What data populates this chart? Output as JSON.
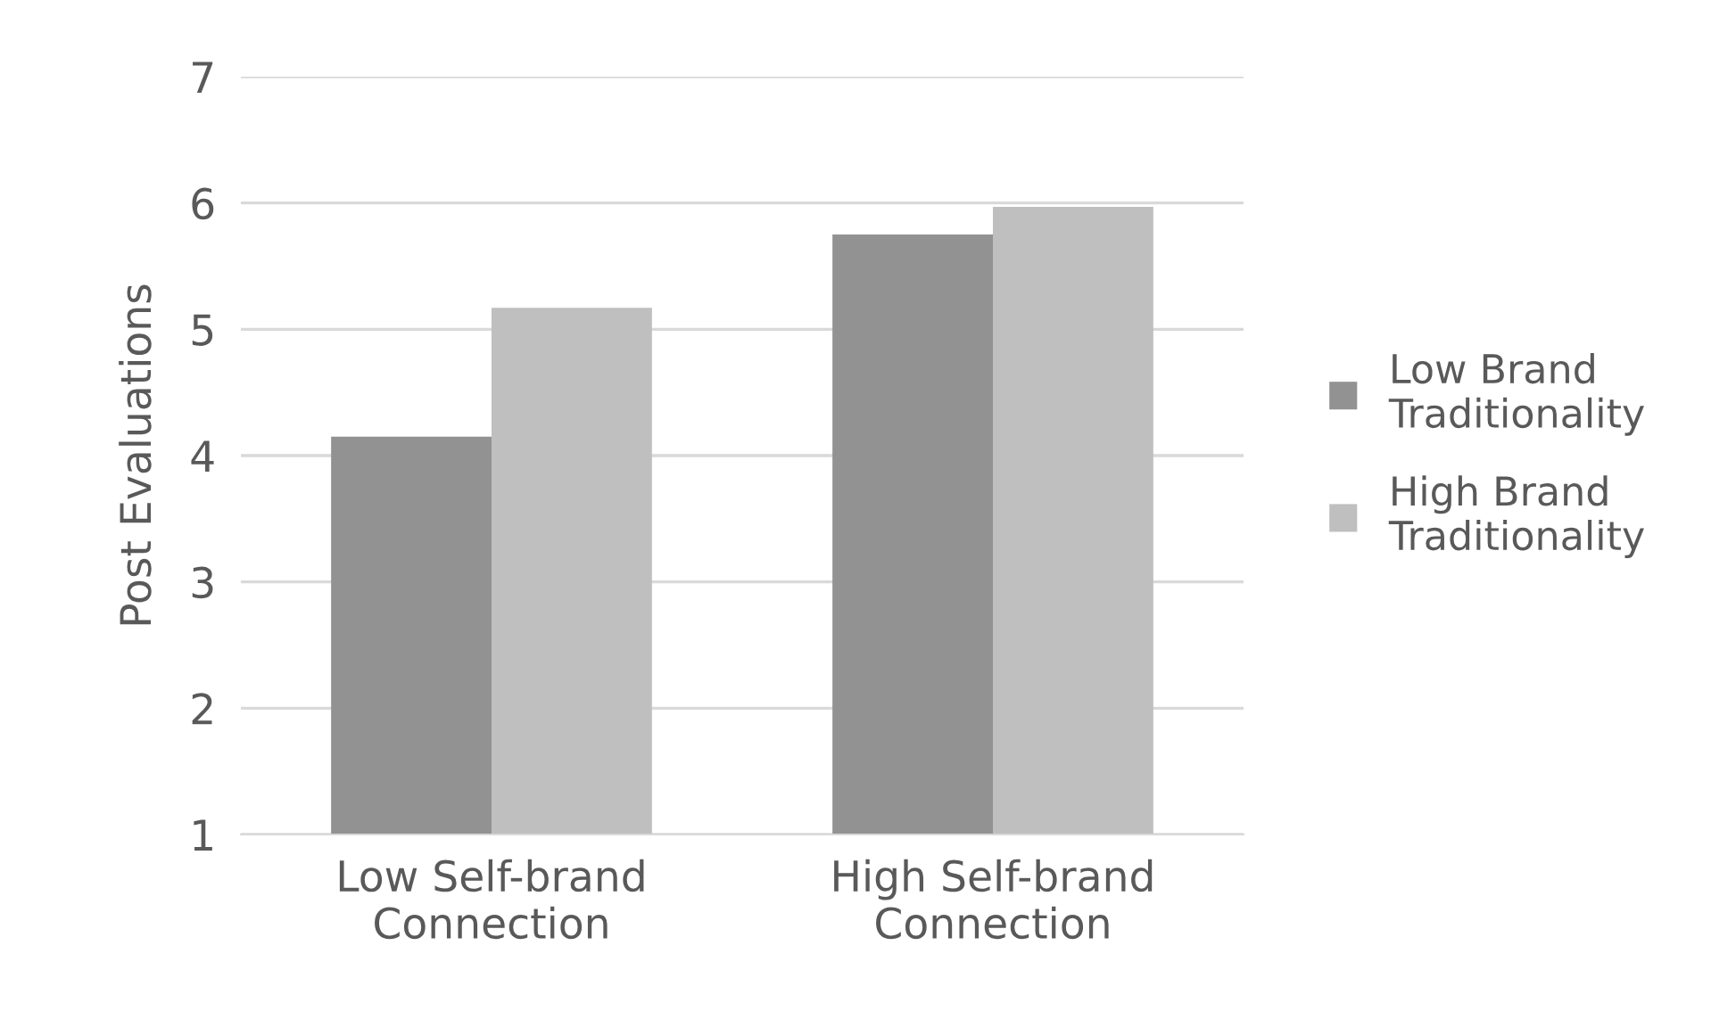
{
  "chart_data": {
    "type": "bar",
    "ylabel": "Post Evaluations",
    "categories": [
      "Low Self-brand\nConnection",
      "High Self-brand\nConnection"
    ],
    "series": [
      {
        "name": "Low Brand\nTraditionality",
        "color": "#929292",
        "values": [
          4.15,
          5.75
        ]
      },
      {
        "name": "High Brand\nTraditionality",
        "color": "#bfbfbf",
        "values": [
          5.17,
          5.97
        ]
      }
    ],
    "ylim": [
      1,
      7
    ],
    "yticks": [
      1,
      2,
      3,
      4,
      5,
      6,
      7
    ],
    "grid": "y",
    "legend": "right"
  }
}
